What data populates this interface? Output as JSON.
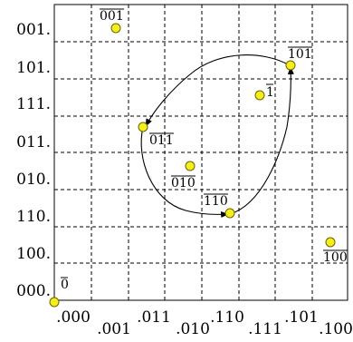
{
  "row_labels": [
    "001.",
    "101.",
    "111.",
    "011.",
    "010.",
    "110.",
    "100.",
    "000."
  ],
  "col_labels": [
    ".000",
    ".001",
    ".011",
    ".010",
    ".110",
    ".111",
    ".101",
    ".100"
  ],
  "points": [
    {
      "id": "p-001",
      "label": "001",
      "overline": true
    },
    {
      "id": "p-101",
      "label": "101",
      "overline": true
    },
    {
      "id": "p-1",
      "label": "1",
      "overline": true
    },
    {
      "id": "p-011",
      "label": "011",
      "overline": true
    },
    {
      "id": "p-010",
      "label": "010",
      "overline": true
    },
    {
      "id": "p-110",
      "label": "110",
      "overline": true
    },
    {
      "id": "p-100",
      "label": "100",
      "overline": true
    },
    {
      "id": "p-0",
      "label": "0",
      "overline": true
    }
  ],
  "colors": {
    "node_fill": "#f6ee1a",
    "node_stroke": "#6b6300",
    "line": "#000000"
  }
}
